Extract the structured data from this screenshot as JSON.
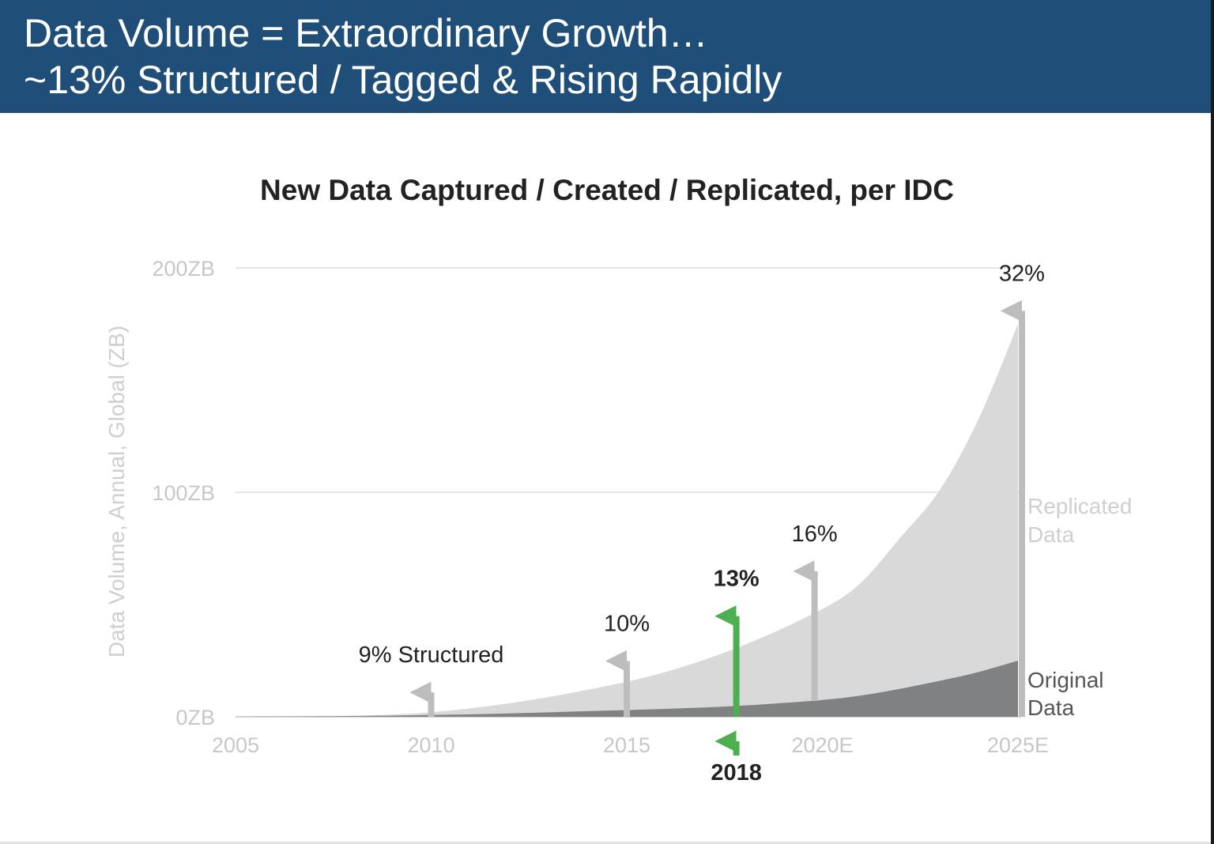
{
  "header": {
    "line1": "Data Volume = Extraordinary Growth…",
    "line2": "~13% Structured / Tagged & Rising Rapidly"
  },
  "colors": {
    "header_bg": "#1f4e79",
    "replicated_area": "#d9d9d9",
    "original_area": "#7f8183",
    "arrow_gray": "#bdbdbd",
    "arrow_green": "#4caf50",
    "gridline": "#e6e6e6"
  },
  "chart_data": {
    "type": "area",
    "title": "New Data Captured / Created / Replicated, per IDC",
    "xlabel": "",
    "ylabel": "Data Volume, Annual, Global (ZB)",
    "xlim": [
      2005,
      2025
    ],
    "ylim": [
      0,
      200
    ],
    "x_ticks": [
      {
        "value": 2005,
        "label": "2005"
      },
      {
        "value": 2010,
        "label": "2010"
      },
      {
        "value": 2015,
        "label": "2015"
      },
      {
        "value": 2020,
        "label": "2020E"
      },
      {
        "value": 2025,
        "label": "2025E"
      }
    ],
    "y_ticks": [
      {
        "value": 0,
        "label": "0ZB"
      },
      {
        "value": 100,
        "label": "100ZB"
      },
      {
        "value": 200,
        "label": "200ZB"
      }
    ],
    "grid": true,
    "series": [
      {
        "name": "Replicated Data",
        "legend_lines": [
          "Replicated",
          "Data"
        ],
        "x": [
          2005,
          2008,
          2010,
          2012,
          2014,
          2016,
          2018,
          2020,
          2021,
          2022,
          2023,
          2024,
          2025
        ],
        "values": [
          0,
          0.5,
          2,
          6,
          12,
          20,
          32,
          48,
          60,
          80,
          101,
          133,
          175
        ]
      },
      {
        "name": "Original Data",
        "legend_lines": [
          "Original",
          "Data"
        ],
        "x": [
          2005,
          2008,
          2010,
          2012,
          2014,
          2016,
          2018,
          2020,
          2021,
          2022,
          2023,
          2024,
          2025
        ],
        "values": [
          0,
          0.3,
          0.8,
          1.5,
          2.5,
          3.5,
          5,
          7.5,
          9.5,
          12.5,
          16,
          20,
          25
        ]
      }
    ],
    "annotations": [
      {
        "x": 2010,
        "y_from": 0,
        "y_to": 20,
        "label": "9% Structured",
        "bold": false,
        "color": "gray"
      },
      {
        "x": 2015,
        "y_from": 0,
        "y_to": 34,
        "label": "10%",
        "bold": false,
        "color": "gray"
      },
      {
        "x": 2017.8,
        "y_from": 0,
        "y_to": 54,
        "label": "13%",
        "bold": true,
        "color": "green"
      },
      {
        "x": 2019.8,
        "y_from": 7,
        "y_to": 74,
        "label": "16%",
        "bold": false,
        "color": "gray"
      },
      {
        "x": 2025.1,
        "y_from": 0,
        "y_to": 190,
        "label": "32%",
        "bold": false,
        "color": "gray"
      }
    ],
    "marker": {
      "x": 2017.8,
      "label": "2018"
    }
  }
}
